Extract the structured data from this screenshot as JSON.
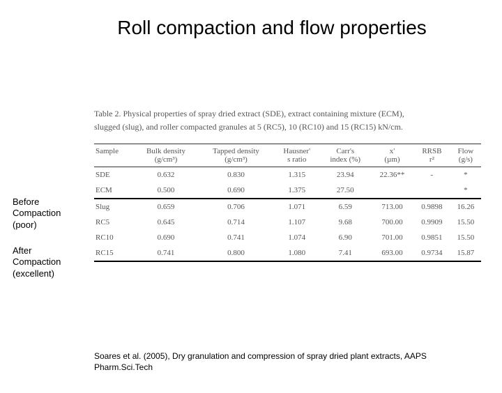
{
  "title": "Roll compaction and flow properties",
  "table": {
    "caption_line1": "Table 2. Physical properties of spray dried extract (SDE), extract containing mixture (ECM),",
    "caption_line2": "slugged (slug), and roller compacted granules at 5 (RC5), 10 (RC10) and 15 (RC15) kN/cm.",
    "headers_row1": [
      "Sample",
      "Bulk density",
      "Tapped density",
      "Hausner'",
      "Carr's",
      "x'",
      "RRSB",
      "Flow"
    ],
    "headers_row2": [
      "",
      "(g/cm³)",
      "(g/cm³)",
      "s ratio",
      "index (%)",
      "(µm)",
      "r²",
      "(g/s)"
    ],
    "rows_before": [
      [
        "SDE",
        "0.632",
        "0.830",
        "1.315",
        "23.94",
        "22.36**",
        "-",
        "*"
      ],
      [
        "ECM",
        "0.500",
        "0.690",
        "1.375",
        "27.50",
        "",
        "",
        "*"
      ]
    ],
    "rows_after": [
      [
        "Slug",
        "0.659",
        "0.706",
        "1.071",
        "6.59",
        "713.00",
        "0.9898",
        "16.26"
      ],
      [
        "RC5",
        "0.645",
        "0.714",
        "1.107",
        "9.68",
        "700.00",
        "0.9909",
        "15.50"
      ],
      [
        "RC10",
        "0.690",
        "0.741",
        "1.074",
        "6.90",
        "701.00",
        "0.9851",
        "15.50"
      ],
      [
        "RC15",
        "0.741",
        "0.800",
        "1.080",
        "7.41",
        "693.00",
        "0.9734",
        "15.87"
      ]
    ]
  },
  "annotations": {
    "before_line1": "Before",
    "before_line2": "Compaction",
    "before_line3": "(poor)",
    "after_line1": "After",
    "after_line2": "Compaction",
    "after_line3": "(excellent)"
  },
  "citation_line1": "Soares et al. (2005), Dry granulation and compression of spray dried plant extracts, AAPS",
  "citation_line2": "Pharm.Sci.Tech"
}
